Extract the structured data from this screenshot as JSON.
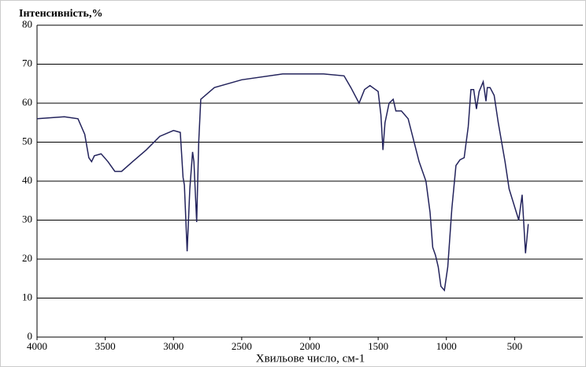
{
  "chart_data": {
    "type": "line",
    "title": "Інтенсивність,%",
    "x_label": "Хвильове число, см-1",
    "x": [
      4000,
      3800,
      3700,
      3650,
      3620,
      3600,
      3580,
      3530,
      3480,
      3430,
      3380,
      3300,
      3200,
      3100,
      3000,
      2950,
      2930,
      2920,
      2900,
      2880,
      2860,
      2850,
      2830,
      2815,
      2800,
      2700,
      2500,
      2200,
      1900,
      1750,
      1700,
      1640,
      1600,
      1560,
      1500,
      1480,
      1465,
      1450,
      1420,
      1390,
      1370,
      1330,
      1280,
      1200,
      1150,
      1120,
      1100,
      1080,
      1060,
      1040,
      1015,
      990,
      960,
      930,
      900,
      870,
      840,
      820,
      800,
      780,
      760,
      730,
      710,
      700,
      680,
      650,
      620,
      570,
      540,
      470,
      445,
      420,
      400
    ],
    "series": [
      {
        "name": "spectrum",
        "color": "#23235c",
        "values": [
          56,
          56.5,
          56,
          52,
          46,
          45,
          46.5,
          47,
          45,
          42.5,
          42.5,
          45,
          48,
          51.5,
          53,
          52.5,
          41,
          39,
          22,
          38,
          47.5,
          45,
          29.5,
          50,
          61,
          64,
          66,
          67.5,
          67.5,
          67,
          64,
          60,
          63.5,
          64.5,
          63,
          57,
          48,
          55,
          60,
          61,
          58,
          58,
          56,
          45,
          40,
          32,
          23,
          21,
          18,
          13,
          12,
          18,
          33,
          44,
          45.5,
          46,
          54,
          63.5,
          63.5,
          58.5,
          63,
          65.5,
          60.5,
          64,
          64,
          62,
          55,
          45,
          38,
          30,
          36.5,
          21.5,
          29
        ]
      }
    ],
    "xlim": [
      4000,
      0
    ],
    "xticks": [
      4000,
      3500,
      3000,
      2500,
      2000,
      1500,
      1000,
      500
    ],
    "ylim": [
      0,
      80
    ],
    "yticks": [
      0,
      10,
      20,
      30,
      40,
      50,
      60,
      70,
      80
    ],
    "grid": true
  }
}
